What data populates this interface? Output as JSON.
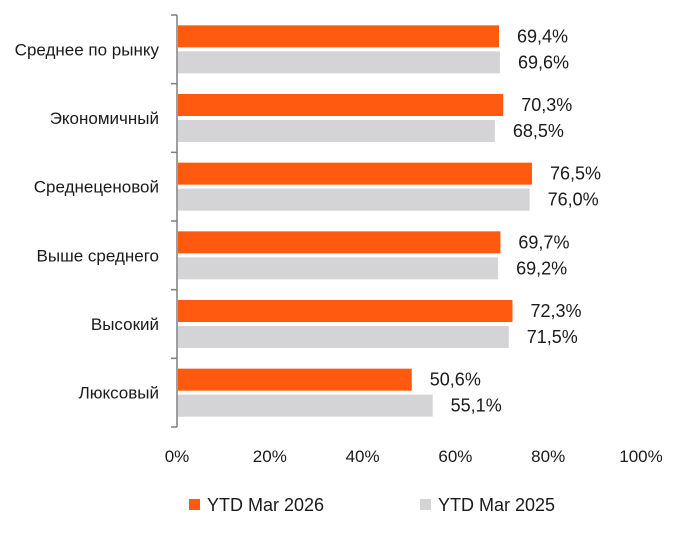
{
  "chart_data": {
    "type": "bar",
    "orientation": "horizontal",
    "categories": [
      "Среднее по рынку",
      "Экономичный",
      "Среднеценовой",
      "Выше среднего",
      "Высокий",
      "Люксовый"
    ],
    "series": [
      {
        "name": "YTD Mar 2026",
        "color": "#FF5A0F",
        "values": [
          69.4,
          70.3,
          76.5,
          69.7,
          72.3,
          50.6
        ],
        "labels": [
          "69,4%",
          "70,3%",
          "76,5%",
          "69,7%",
          "72,3%",
          "50,6%"
        ]
      },
      {
        "name": "YTD Mar 2025",
        "color": "#D4D4D6",
        "values": [
          69.6,
          68.5,
          76.0,
          69.2,
          71.5,
          55.1
        ],
        "labels": [
          "69,6%",
          "68,5%",
          "76,0%",
          "69,2%",
          "71,5%",
          "55,1%"
        ]
      }
    ],
    "xlim": [
      0,
      100
    ],
    "xticks": [
      0,
      20,
      40,
      60,
      80,
      100
    ],
    "xtick_labels": [
      "0%",
      "20%",
      "40%",
      "60%",
      "80%",
      "100%"
    ],
    "axis_color": "#7f7f7f",
    "grid": false,
    "legend_position": "bottom"
  }
}
